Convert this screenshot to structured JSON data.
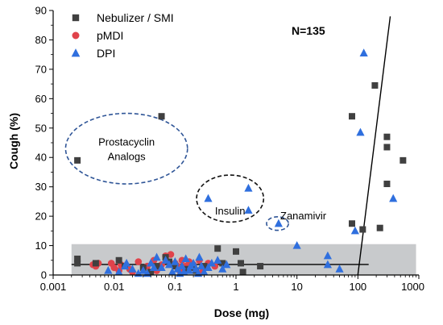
{
  "chart_data": {
    "type": "scatter",
    "xlabel": "Dose (mg)",
    "ylabel": "Cough (%)",
    "x_scale": "log",
    "xlim": [
      0.001,
      1000
    ],
    "ylim": [
      0,
      90
    ],
    "x_ticks": [
      0.001,
      0.01,
      0.1,
      1,
      10,
      100,
      1000
    ],
    "x_tick_labels": [
      "0.001",
      "0.01",
      "0.1",
      "1",
      "10",
      "100",
      "1000"
    ],
    "y_ticks": [
      0,
      10,
      20,
      30,
      40,
      50,
      60,
      70,
      80,
      90
    ],
    "y_tick_labels": [
      "0",
      "10",
      "20",
      "30",
      "40",
      "50",
      "60",
      "70",
      "80",
      "90"
    ],
    "grid": false,
    "legend_position": "top-left",
    "series": [
      {
        "name": "Nebulizer / SMI",
        "marker": "square",
        "color": "#404040",
        "points": [
          [
            0.0025,
            39
          ],
          [
            0.06,
            54
          ],
          [
            80,
            54
          ],
          [
            190,
            64.5
          ],
          [
            300,
            47
          ],
          [
            300,
            43.5
          ],
          [
            550,
            39
          ],
          [
            300,
            31
          ],
          [
            80,
            17.5
          ],
          [
            230,
            16
          ],
          [
            120,
            15.5
          ],
          [
            0.0025,
            5.5
          ],
          [
            0.0025,
            4
          ],
          [
            0.005,
            4
          ],
          [
            0.012,
            5
          ],
          [
            0.015,
            3
          ],
          [
            0.03,
            2.5
          ],
          [
            0.05,
            3
          ],
          [
            0.08,
            4.5
          ],
          [
            0.1,
            3
          ],
          [
            0.15,
            2
          ],
          [
            0.2,
            2.5
          ],
          [
            0.3,
            3
          ],
          [
            0.5,
            9
          ],
          [
            0.6,
            4
          ],
          [
            1.0,
            8
          ],
          [
            1.2,
            4
          ],
          [
            1.3,
            1
          ],
          [
            2.5,
            3
          ],
          [
            0.04,
            1
          ],
          [
            0.22,
            1.5
          ],
          [
            0.07,
            6
          ]
        ]
      },
      {
        "name": "pMDI",
        "marker": "circle",
        "color": "#e0434b",
        "points": [
          [
            0.0045,
            3.5
          ],
          [
            0.005,
            3
          ],
          [
            0.009,
            4
          ],
          [
            0.01,
            2.5
          ],
          [
            0.013,
            3.5
          ],
          [
            0.018,
            2
          ],
          [
            0.025,
            4.5
          ],
          [
            0.035,
            3
          ],
          [
            0.045,
            5
          ],
          [
            0.06,
            3.5
          ],
          [
            0.07,
            6.5
          ],
          [
            0.085,
            7
          ],
          [
            0.1,
            4
          ],
          [
            0.11,
            3
          ],
          [
            0.13,
            5
          ],
          [
            0.15,
            3
          ],
          [
            0.17,
            4.5
          ],
          [
            0.2,
            3.5
          ],
          [
            0.25,
            5
          ],
          [
            0.3,
            2.5
          ],
          [
            0.35,
            4
          ],
          [
            0.45,
            3
          ],
          [
            0.05,
            1.5
          ],
          [
            0.02,
            1
          ],
          [
            0.12,
            1.5
          ],
          [
            0.28,
            1
          ],
          [
            0.0055,
            4
          ],
          [
            0.012,
            1.5
          ]
        ]
      },
      {
        "name": "DPI",
        "marker": "triangle",
        "color": "#2f6fde",
        "points": [
          [
            125,
            75.5
          ],
          [
            110,
            48.5
          ],
          [
            1.6,
            29.5
          ],
          [
            0.35,
            26
          ],
          [
            380,
            26
          ],
          [
            1.6,
            22
          ],
          [
            5,
            17.5
          ],
          [
            90,
            15
          ],
          [
            10,
            10
          ],
          [
            32,
            6.5
          ],
          [
            32,
            3.5
          ],
          [
            50,
            2
          ],
          [
            0.012,
            1
          ],
          [
            0.015,
            3
          ],
          [
            0.02,
            2
          ],
          [
            0.025,
            0.5
          ],
          [
            0.03,
            1.5
          ],
          [
            0.04,
            4
          ],
          [
            0.05,
            6
          ],
          [
            0.06,
            2.5
          ],
          [
            0.07,
            5
          ],
          [
            0.08,
            3.5
          ],
          [
            0.09,
            1
          ],
          [
            0.1,
            4.5
          ],
          [
            0.11,
            2
          ],
          [
            0.12,
            0.5
          ],
          [
            0.13,
            3
          ],
          [
            0.15,
            5.5
          ],
          [
            0.17,
            1.5
          ],
          [
            0.2,
            4
          ],
          [
            0.22,
            2
          ],
          [
            0.25,
            6
          ],
          [
            0.27,
            3
          ],
          [
            0.3,
            1
          ],
          [
            0.35,
            2.5
          ],
          [
            0.4,
            4
          ],
          [
            0.5,
            5
          ],
          [
            0.6,
            2
          ],
          [
            0.7,
            3.5
          ],
          [
            0.035,
            0.5
          ],
          [
            0.14,
            1
          ],
          [
            0.18,
            3
          ],
          [
            0.045,
            2.5
          ],
          [
            0.008,
            1.5
          ],
          [
            0.24,
            0.5
          ],
          [
            0.016,
            4
          ]
        ]
      }
    ],
    "annotations": [
      {
        "text": "N=135"
      },
      {
        "text": "Prostacyclin Analogs",
        "lines": [
          "Prostacyclin",
          "Analogs"
        ]
      },
      {
        "text": "Insulin"
      },
      {
        "text": "Zanamivir"
      }
    ],
    "reference_band": {
      "y0": 0,
      "y1": 10.5,
      "x0": 0.002,
      "x1": 900,
      "color": "#c8cacc"
    },
    "reference_lines": [
      {
        "points": [
          [
            0.002,
            3.6
          ],
          [
            150,
            3.6
          ]
        ]
      },
      {
        "points": [
          [
            100,
            0
          ],
          [
            340,
            88
          ]
        ]
      }
    ],
    "highlight_regions": [
      {
        "label": "Prostacyclin Analogs",
        "cx": 0.016,
        "cy": 43,
        "rx_decades": 1.0,
        "ry": 12,
        "style": "dashed",
        "color": "#2f5597"
      },
      {
        "label": "Insulin",
        "cx": 0.8,
        "cy": 26,
        "rx_decades": 0.55,
        "ry": 8,
        "style": "dashed",
        "color": "#111111"
      },
      {
        "label": "Zanamivir",
        "cx": 4.8,
        "cy": 17.5,
        "rx_decades": 0.18,
        "ry": 2.3,
        "style": "dashed",
        "color": "#2f5597"
      }
    ]
  }
}
